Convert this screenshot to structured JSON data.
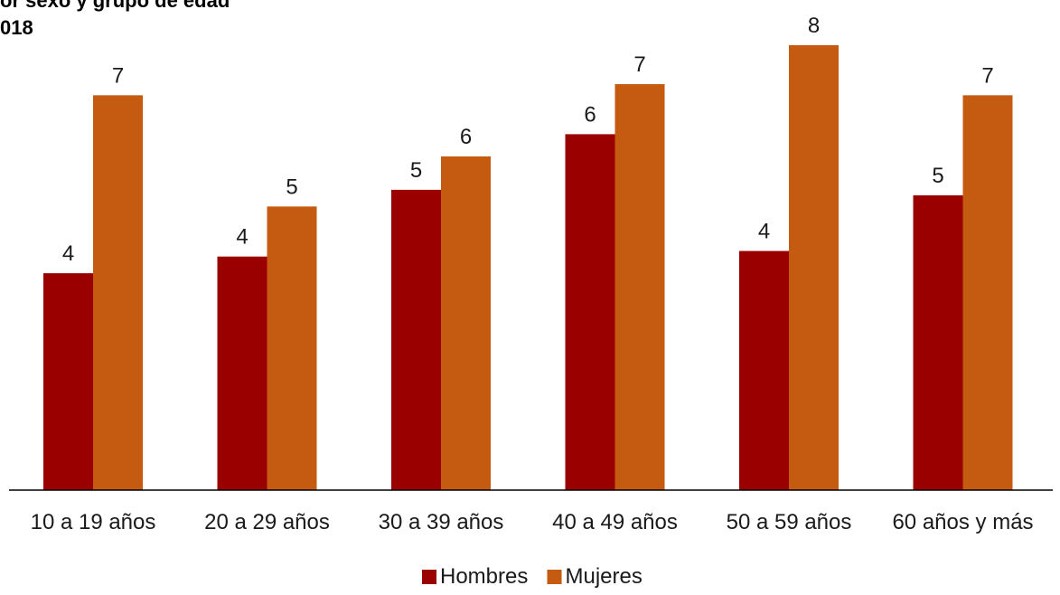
{
  "chart_data": {
    "type": "bar",
    "title_lines": [
      "or sexo y grupo de edad",
      "018"
    ],
    "categories": [
      "10 a 19 años",
      "20 a 29 años",
      "30 a 39 años",
      "40 a 49 años",
      "50 a 59 años",
      "60 años y más"
    ],
    "series": [
      {
        "name": "Hombres",
        "color": "#9b0000",
        "values": [
          3.9,
          4.2,
          5.4,
          6.4,
          4.3,
          5.3
        ],
        "labels": [
          "4",
          "4",
          "5",
          "6",
          "4",
          "5"
        ]
      },
      {
        "name": "Mujeres",
        "color": "#c55a11",
        "values": [
          7.1,
          5.1,
          6.0,
          7.3,
          8.0,
          7.1
        ],
        "labels": [
          "7",
          "5",
          "6",
          "7",
          "8",
          "7"
        ]
      }
    ],
    "ylim": [
      0,
      8
    ],
    "grid": false,
    "legend_position": "bottom"
  }
}
